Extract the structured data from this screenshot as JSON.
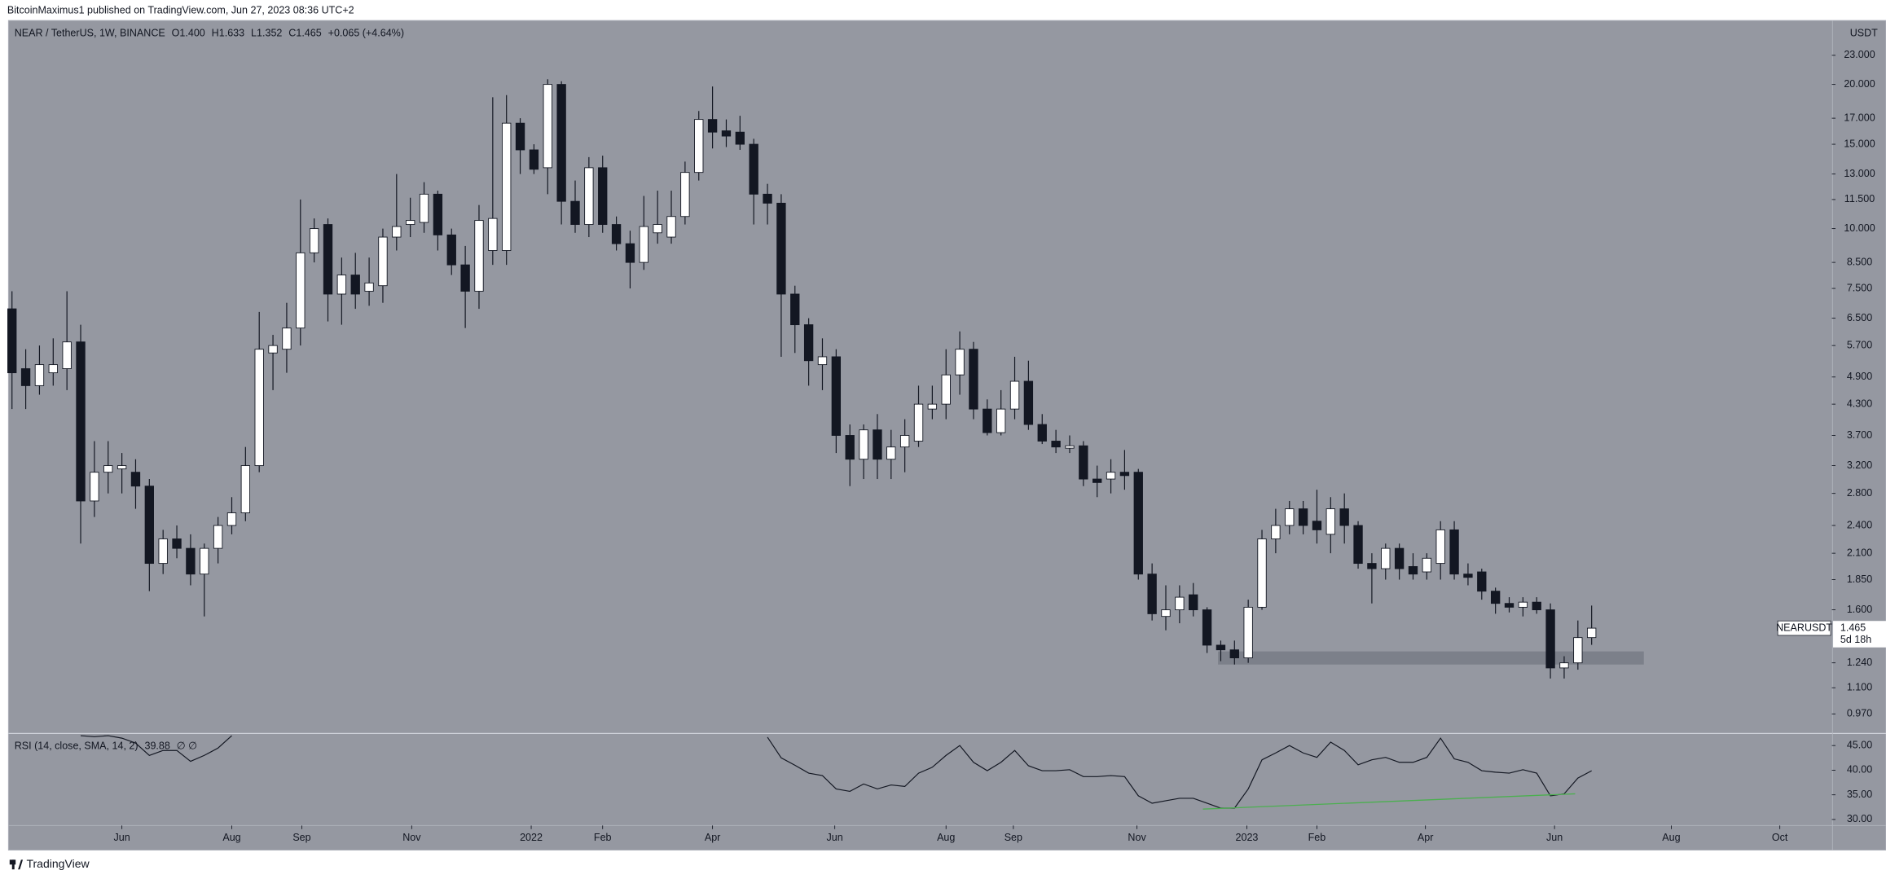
{
  "header": {
    "publisher": "BitcoinMaximus1 published on TradingView.com, Jun 27, 2023 08:36 UTC+2"
  },
  "footer": {
    "brand": "TradingView"
  },
  "chart_data": [
    {
      "type": "candlestick",
      "title": "NEAR / TetherUS, 1W, BINANCE",
      "ohlc_legend": [
        {
          "label": "O",
          "value": "1.400"
        },
        {
          "label": "H",
          "value": "1.633"
        },
        {
          "label": "L",
          "value": "1.352"
        },
        {
          "label": "C",
          "value": "1.465"
        }
      ],
      "change": "+0.065 (+4.64%)",
      "y_unit": "USDT",
      "log_scale": true,
      "ylim": [
        0.888,
        27.2
      ],
      "yticks": [
        {
          "value": 23,
          "label": "23.000"
        },
        {
          "value": 20,
          "label": "20.000"
        },
        {
          "value": 17,
          "label": "17.000"
        },
        {
          "value": 15,
          "label": "15.000"
        },
        {
          "value": 13,
          "label": "13.000"
        },
        {
          "value": 11.5,
          "label": "11.500"
        },
        {
          "value": 10,
          "label": "10.000"
        },
        {
          "value": 8.5,
          "label": "8.500"
        },
        {
          "value": 7.5,
          "label": "7.500"
        },
        {
          "value": 6.5,
          "label": "6.500"
        },
        {
          "value": 5.7,
          "label": "5.700"
        },
        {
          "value": 4.9,
          "label": "4.900"
        },
        {
          "value": 4.3,
          "label": "4.300"
        },
        {
          "value": 3.7,
          "label": "3.700"
        },
        {
          "value": 3.2,
          "label": "3.200"
        },
        {
          "value": 2.8,
          "label": "2.800"
        },
        {
          "value": 2.4,
          "label": "2.400"
        },
        {
          "value": 2.1,
          "label": "2.100"
        },
        {
          "value": 1.85,
          "label": "1.850"
        },
        {
          "value": 1.6,
          "label": "1.600"
        },
        {
          "value": 1.24,
          "label": "1.240"
        },
        {
          "value": 1.1,
          "label": "1.100"
        },
        {
          "value": 0.97,
          "label": "0.970"
        }
      ],
      "xlim": [
        -0.26,
        132.49
      ],
      "xticks": [
        {
          "value": 8.0,
          "label": "Jun"
        },
        {
          "value": 16.0,
          "label": "Aug"
        },
        {
          "value": 21.1,
          "label": "Sep"
        },
        {
          "value": 29.1,
          "label": "Nov"
        },
        {
          "value": 37.8,
          "label": "2022"
        },
        {
          "value": 43.0,
          "label": "Feb"
        },
        {
          "value": 51.0,
          "label": "Apr"
        },
        {
          "value": 59.9,
          "label": "Jun"
        },
        {
          "value": 68.0,
          "label": "Aug"
        },
        {
          "value": 72.9,
          "label": "Sep"
        },
        {
          "value": 81.9,
          "label": "Nov"
        },
        {
          "value": 89.9,
          "label": "2023"
        },
        {
          "value": 95.0,
          "label": "Feb"
        },
        {
          "value": 102.9,
          "label": "Apr"
        },
        {
          "value": 112.3,
          "label": "Jun"
        },
        {
          "value": 120.8,
          "label": "Aug"
        },
        {
          "value": 128.7,
          "label": "Oct"
        }
      ],
      "open": [
        6.8,
        5.1,
        4.7,
        5.0,
        5.1,
        5.8,
        2.7,
        3.1,
        3.15,
        3.1,
        2.9,
        2.0,
        2.25,
        2.15,
        1.9,
        2.15,
        2.4,
        2.55,
        3.2,
        5.5,
        5.6,
        6.2,
        8.9,
        10.2,
        7.3,
        8.0,
        7.4,
        7.6,
        9.6,
        10.2,
        10.3,
        11.8,
        9.7,
        8.4,
        7.4,
        9.0,
        9.0,
        16.6,
        14.6,
        13.4,
        20.0,
        11.4,
        10.2,
        13.4,
        10.2,
        9.3,
        8.5,
        9.8,
        9.6,
        10.6,
        13.1,
        16.9,
        16.0,
        15.9,
        15.0,
        11.8,
        11.3,
        7.3,
        6.3,
        5.2,
        5.4,
        3.7,
        3.3,
        3.8,
        3.3,
        3.5,
        3.6,
        4.2,
        4.3,
        4.95,
        5.6,
        4.2,
        3.75,
        4.2,
        4.8,
        3.9,
        3.6,
        3.48,
        3.52,
        3.0,
        3.0,
        3.1,
        3.1,
        1.9,
        1.55,
        1.6,
        1.72,
        1.6,
        1.35,
        1.32,
        1.27,
        1.62,
        2.25,
        2.4,
        2.6,
        2.45,
        2.3,
        2.6,
        2.4,
        2.0,
        1.95,
        2.15,
        1.97,
        1.92,
        2.0,
        2.35,
        1.9,
        1.92,
        1.75,
        1.65,
        1.62,
        1.66,
        1.6,
        1.21,
        1.24,
        1.4
      ],
      "high": [
        7.4,
        5.6,
        5.7,
        5.9,
        7.4,
        6.3,
        3.6,
        3.6,
        3.4,
        3.3,
        3.0,
        2.35,
        2.4,
        2.3,
        2.2,
        2.5,
        2.75,
        3.5,
        6.7,
        6.0,
        7.0,
        11.5,
        10.5,
        10.5,
        8.7,
        8.9,
        8.7,
        10.0,
        13.0,
        11.6,
        12.5,
        12.0,
        10.0,
        9.2,
        11.2,
        18.8,
        19.0,
        17.0,
        15.0,
        20.5,
        20.3,
        12.6,
        14.1,
        14.2,
        10.6,
        9.9,
        11.7,
        12.0,
        12.0,
        13.8,
        17.6,
        19.8,
        16.9,
        17.2,
        15.4,
        12.4,
        11.8,
        7.6,
        6.5,
        5.9,
        5.6,
        3.9,
        3.9,
        4.1,
        3.8,
        4.0,
        4.7,
        4.7,
        5.6,
        6.1,
        5.8,
        4.4,
        4.6,
        5.4,
        5.3,
        4.1,
        3.8,
        3.7,
        3.6,
        3.2,
        3.3,
        3.45,
        3.15,
        2.0,
        1.8,
        1.8,
        1.82,
        1.62,
        1.38,
        1.38,
        1.68,
        2.35,
        2.6,
        2.7,
        2.7,
        2.85,
        2.75,
        2.8,
        2.45,
        2.1,
        2.2,
        2.2,
        2.1,
        2.1,
        2.45,
        2.45,
        2.0,
        1.95,
        1.78,
        1.7,
        1.7,
        1.7,
        1.65,
        1.28,
        1.52,
        1.633
      ],
      "low": [
        4.2,
        4.2,
        4.5,
        4.7,
        4.6,
        2.2,
        2.5,
        2.8,
        2.8,
        2.6,
        1.75,
        1.9,
        2.05,
        1.8,
        1.55,
        2.0,
        2.3,
        2.45,
        3.1,
        4.6,
        5.0,
        5.7,
        8.5,
        6.4,
        6.3,
        6.8,
        6.9,
        7.0,
        9.0,
        9.6,
        9.8,
        9.0,
        8.0,
        6.2,
        6.8,
        8.4,
        8.4,
        13.0,
        13.0,
        11.8,
        10.2,
        9.8,
        9.6,
        9.8,
        9.0,
        7.5,
        8.2,
        9.3,
        9.3,
        10.2,
        12.6,
        14.7,
        14.8,
        14.6,
        10.2,
        10.2,
        5.4,
        5.5,
        4.7,
        4.6,
        3.4,
        2.9,
        3.0,
        3.0,
        3.0,
        3.1,
        3.5,
        4.0,
        4.0,
        4.5,
        4.0,
        3.7,
        3.7,
        4.0,
        3.8,
        3.55,
        3.4,
        3.4,
        2.9,
        2.75,
        2.8,
        2.85,
        1.85,
        1.52,
        1.45,
        1.5,
        1.55,
        1.3,
        1.25,
        1.23,
        1.24,
        1.6,
        2.1,
        2.3,
        2.3,
        2.2,
        2.1,
        2.2,
        1.95,
        1.65,
        1.85,
        1.85,
        1.85,
        1.85,
        1.85,
        1.85,
        1.8,
        1.68,
        1.57,
        1.58,
        1.55,
        1.57,
        1.15,
        1.15,
        1.2,
        1.352
      ],
      "close": [
        5.0,
        4.7,
        5.2,
        5.2,
        5.8,
        2.7,
        3.1,
        3.2,
        3.2,
        2.9,
        2.0,
        2.25,
        2.15,
        1.9,
        2.15,
        2.4,
        2.55,
        3.2,
        5.6,
        5.7,
        6.2,
        8.9,
        10.0,
        7.3,
        8.0,
        7.3,
        7.7,
        9.6,
        10.1,
        10.4,
        11.8,
        9.7,
        8.4,
        7.4,
        10.4,
        10.5,
        16.6,
        14.6,
        13.3,
        20.0,
        11.4,
        10.2,
        13.4,
        10.2,
        9.3,
        8.5,
        10.1,
        10.2,
        10.6,
        13.1,
        16.9,
        15.9,
        15.6,
        15.0,
        11.8,
        11.3,
        7.3,
        6.3,
        5.3,
        5.4,
        3.7,
        3.3,
        3.8,
        3.3,
        3.5,
        3.7,
        4.3,
        4.3,
        4.95,
        5.6,
        4.2,
        3.75,
        4.2,
        4.8,
        3.9,
        3.6,
        3.5,
        3.52,
        3.0,
        2.95,
        3.1,
        3.05,
        1.9,
        1.57,
        1.6,
        1.7,
        1.6,
        1.35,
        1.32,
        1.27,
        1.62,
        2.25,
        2.4,
        2.6,
        2.4,
        2.35,
        2.6,
        2.4,
        2.0,
        1.95,
        2.15,
        1.95,
        1.9,
        2.05,
        2.35,
        1.9,
        1.87,
        1.75,
        1.65,
        1.62,
        1.66,
        1.6,
        1.21,
        1.24,
        1.4,
        1.465
      ],
      "up_color": "#ffffff",
      "down_color": "#131722",
      "zone": {
        "x": [
          87.8,
          118.8
        ],
        "y": [
          1.23,
          1.31
        ],
        "color": "#787b86"
      },
      "price_tag": {
        "name": "NEARUSDT",
        "value": 1.465,
        "label": "1.465",
        "countdown": "5d 18h"
      }
    },
    {
      "type": "line",
      "title": "RSI (14, close, SMA, 14, 2)",
      "legend_value": "39.88",
      "legend_extra": "∅ ∅",
      "color": "#131722",
      "ylim": [
        28.9,
        47.2
      ],
      "yticks": [
        {
          "value": 45,
          "label": "45.00"
        },
        {
          "value": 40,
          "label": "40.00"
        },
        {
          "value": 35,
          "label": "35.00"
        },
        {
          "value": 30,
          "label": "30.00"
        }
      ],
      "values": [
        null,
        null,
        null,
        null,
        null,
        47.0,
        46.8,
        47.0,
        46.5,
        45.5,
        43.0,
        44.0,
        44.0,
        41.8,
        43.0,
        44.5,
        47.0,
        null,
        null,
        null,
        null,
        null,
        null,
        null,
        null,
        null,
        null,
        null,
        null,
        null,
        null,
        null,
        null,
        null,
        null,
        null,
        null,
        null,
        null,
        null,
        null,
        null,
        null,
        null,
        null,
        null,
        null,
        null,
        null,
        null,
        null,
        null,
        null,
        null,
        null,
        46.7,
        42.5,
        41.0,
        39.4,
        38.9,
        36.2,
        35.7,
        37.2,
        36.2,
        37.0,
        36.7,
        39.4,
        40.6,
        43.0,
        45.0,
        41.6,
        39.9,
        41.6,
        44.0,
        40.9,
        39.9,
        39.9,
        40.1,
        38.7,
        38.7,
        38.9,
        38.7,
        34.8,
        33.3,
        33.8,
        34.3,
        34.3,
        33.3,
        32.3,
        32.3,
        36.2,
        42.1,
        43.5,
        45.0,
        43.5,
        42.6,
        45.7,
        44.0,
        41.1,
        42.1,
        42.6,
        41.6,
        41.6,
        42.6,
        46.5,
        42.3,
        41.6,
        39.9,
        39.6,
        39.4,
        40.1,
        39.4,
        34.8,
        35.2,
        38.4,
        39.88
      ],
      "trendline": {
        "x": [
          86.7,
          113.8
        ],
        "values": [
          32.1,
          35.2
        ],
        "color": "#4caf50"
      }
    }
  ]
}
